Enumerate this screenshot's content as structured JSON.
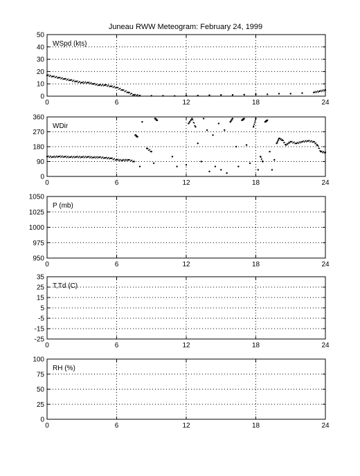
{
  "title": "Juneau RWW Meteogram:  February 24, 1999",
  "chart_data": [
    {
      "type": "scatter",
      "label": "WSpd (kts)",
      "xlim": [
        0,
        24
      ],
      "ylim": [
        0,
        50
      ],
      "xticks": [
        "0",
        "6",
        "12",
        "18",
        "24"
      ],
      "yticks": [
        "0",
        "10",
        "20",
        "30",
        "40",
        "50"
      ],
      "grid": true,
      "series": [
        {
          "x": [
            0,
            0.5,
            1,
            1.5,
            2,
            2.5,
            3,
            3.5,
            4,
            4.5,
            5,
            5.5,
            6,
            6.5,
            7,
            7.5,
            8,
            9,
            10,
            11,
            12,
            13,
            14,
            15,
            16,
            17,
            18,
            19,
            20,
            21,
            22,
            23,
            23.5,
            24
          ],
          "y": [
            17,
            16,
            15,
            14,
            13,
            12,
            11,
            11,
            10,
            9,
            9,
            8,
            7,
            5,
            3,
            1,
            0.5,
            0.3,
            0.3,
            0.2,
            0.3,
            0.5,
            0.8,
            1,
            1,
            1.2,
            1.5,
            1.5,
            2,
            2,
            2.5,
            3,
            4,
            5
          ]
        }
      ]
    },
    {
      "type": "scatter",
      "label": "WDir",
      "xlim": [
        0,
        24
      ],
      "ylim": [
        0,
        360
      ],
      "xticks": [
        "0",
        "6",
        "12",
        "18",
        "24"
      ],
      "yticks": [
        "0",
        "90",
        "180",
        "270",
        "360"
      ],
      "grid": true,
      "series": [
        {
          "x": [
            0,
            0.5,
            1,
            1.5,
            2,
            2.5,
            3,
            3.5,
            4,
            4.5,
            5,
            5.5,
            6,
            6.5,
            7,
            7.5,
            7.6,
            7.8,
            8,
            8.2,
            8.6,
            9,
            9.2,
            9.3,
            9.5,
            10.8,
            11.2,
            12,
            12.2,
            12.5,
            12.8,
            13,
            13.3,
            13.5,
            13.8,
            14,
            14.3,
            14.5,
            14.8,
            15,
            15.3,
            15.5,
            15.8,
            16,
            16.3,
            16.5,
            16.8,
            17,
            17.2,
            17.5,
            17.8,
            18,
            18.2,
            18.4,
            18.6,
            18.8,
            19,
            19.2,
            19.4,
            19.6,
            19.8,
            20,
            20.3,
            20.6,
            21,
            21.5,
            22,
            22.5,
            23,
            23.3,
            23.6,
            24
          ],
          "y": [
            120,
            118,
            120,
            119,
            117,
            118,
            117,
            118,
            115,
            116,
            112,
            110,
            100,
            98,
            100,
            90,
            250,
            240,
            60,
            330,
            170,
            150,
            80,
            350,
            340,
            120,
            60,
            70,
            320,
            350,
            300,
            200,
            90,
            350,
            280,
            30,
            250,
            60,
            320,
            40,
            280,
            20,
            330,
            350,
            180,
            60,
            340,
            350,
            190,
            80,
            300,
            350,
            40,
            120,
            90,
            330,
            340,
            150,
            40,
            100,
            200,
            230,
            220,
            190,
            210,
            200,
            210,
            215,
            210,
            190,
            150,
            145
          ]
        }
      ]
    },
    {
      "type": "scatter",
      "label": "P (mb)",
      "xlim": [
        0,
        24
      ],
      "ylim": [
        950,
        1050
      ],
      "xticks": [
        "0",
        "6",
        "12",
        "18",
        "24"
      ],
      "yticks": [
        "950",
        "975",
        "1000",
        "1025",
        "1050"
      ],
      "grid": true,
      "series": []
    },
    {
      "type": "scatter",
      "label": "T,Td (C)",
      "xlim": [
        0,
        24
      ],
      "ylim": [
        -25,
        35
      ],
      "xticks": [
        "0",
        "6",
        "12",
        "18",
        "24"
      ],
      "yticks": [
        "-25",
        "-15",
        "-5",
        "5",
        "15",
        "25",
        "35"
      ],
      "grid": true,
      "series": []
    },
    {
      "type": "scatter",
      "label": "RH (%)",
      "xlim": [
        0,
        24
      ],
      "ylim": [
        0,
        100
      ],
      "xticks": [
        "0",
        "6",
        "12",
        "18",
        "24"
      ],
      "yticks": [
        "0",
        "25",
        "50",
        "75",
        "100"
      ],
      "grid": true,
      "series": []
    }
  ]
}
